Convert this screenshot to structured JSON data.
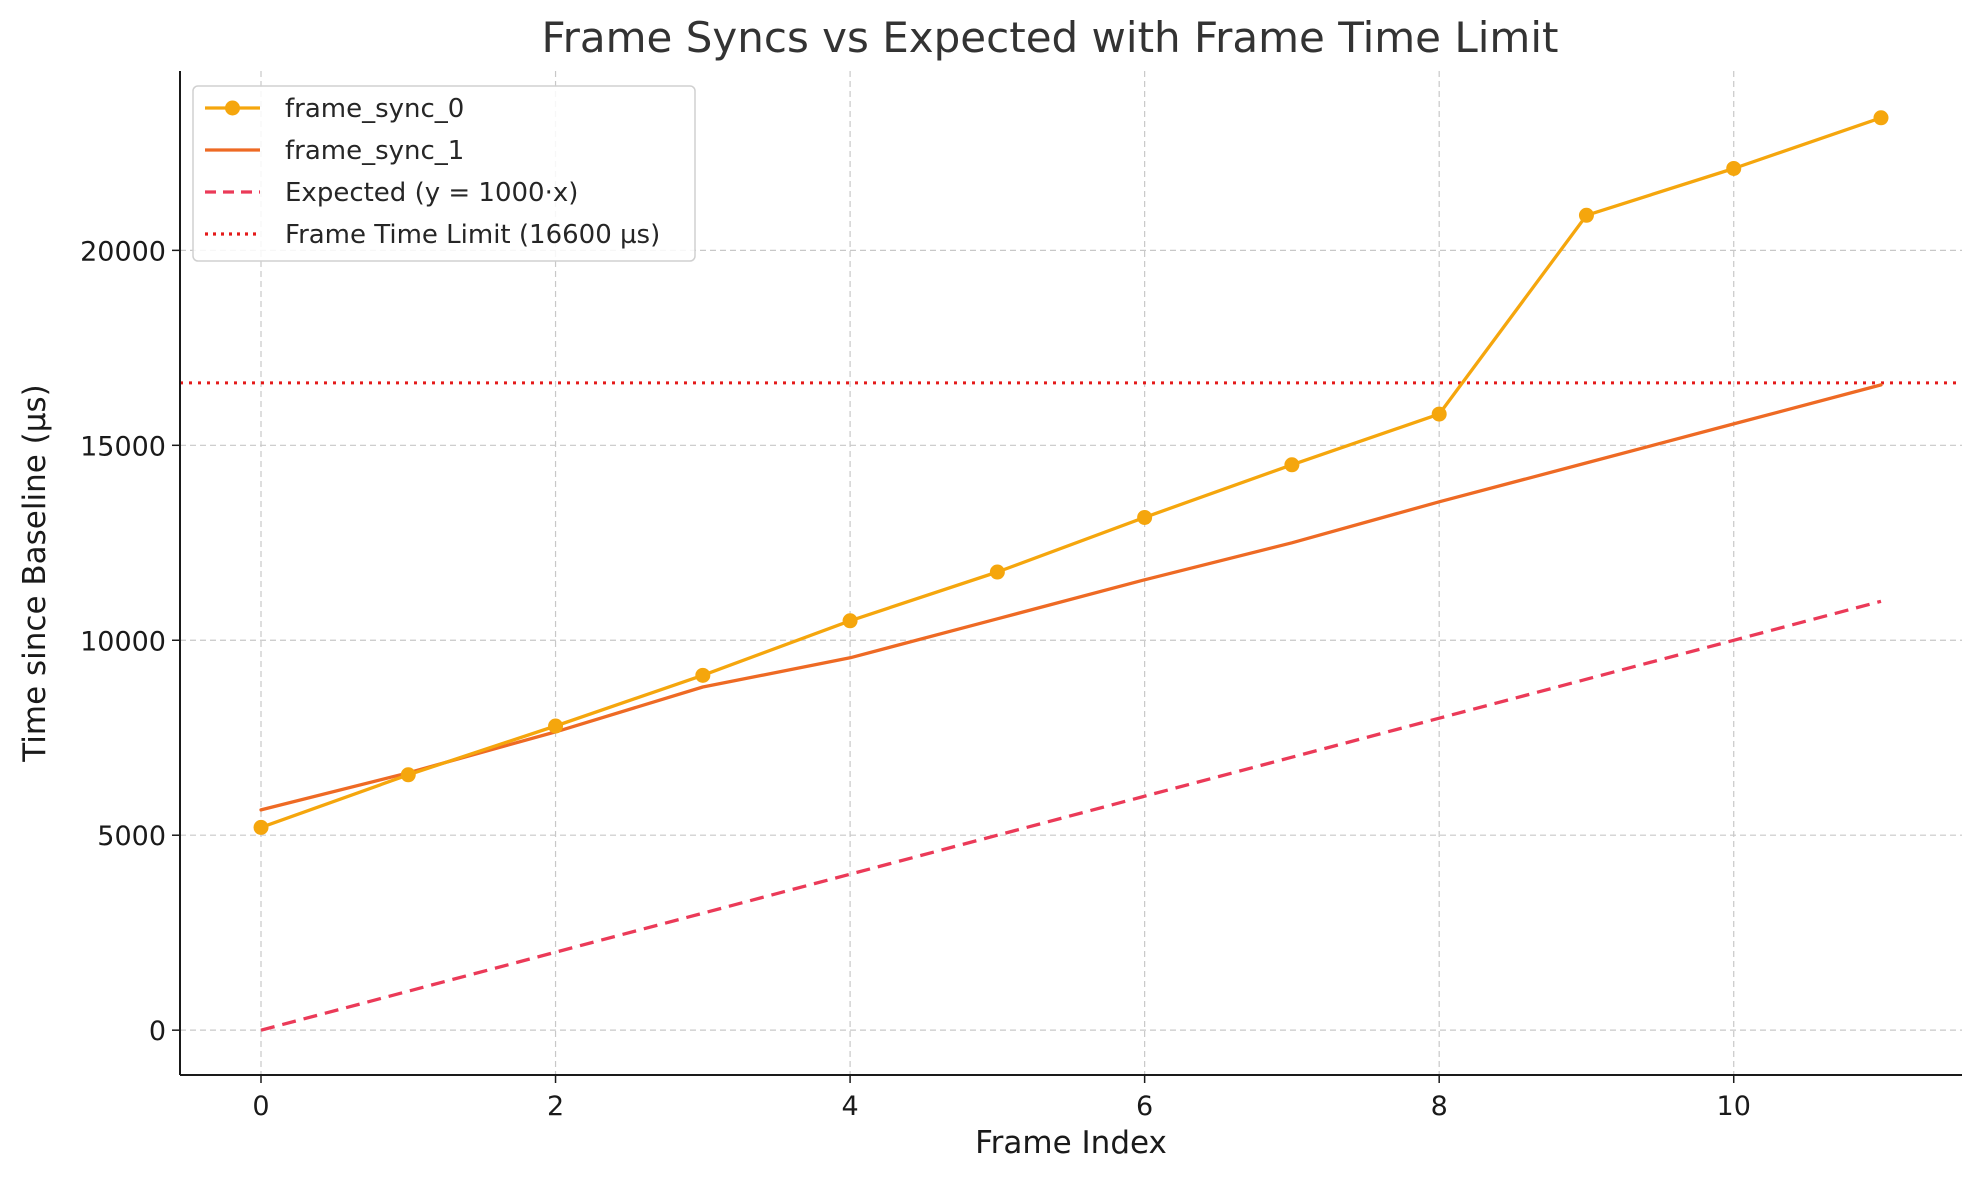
{
  "chart_data": {
    "type": "line",
    "title": "Frame Syncs vs Expected with Frame Time Limit",
    "xlabel": "Frame Index",
    "ylabel": "Time since Baseline (µs)",
    "xlim": [
      -0.55,
      11.55
    ],
    "ylim": [
      -1150,
      24600
    ],
    "xticks": [
      0,
      2,
      4,
      6,
      8,
      10
    ],
    "yticks": [
      0,
      5000,
      10000,
      15000,
      20000
    ],
    "grid": true,
    "legend_position": "top-left",
    "x": [
      0,
      1,
      2,
      3,
      4,
      5,
      6,
      7,
      8,
      9,
      10,
      11
    ],
    "series": [
      {
        "name": "frame_sync_0",
        "color": "#F5A60D",
        "style": "solid",
        "marker": "circle",
        "values": [
          5200,
          6550,
          7800,
          9100,
          10500,
          11750,
          13150,
          14500,
          15800,
          20900,
          22100,
          23400
        ]
      },
      {
        "name": "frame_sync_1",
        "color": "#EE6A24",
        "style": "solid",
        "marker": "none",
        "values": [
          5650,
          6600,
          7650,
          8800,
          9550,
          10550,
          11550,
          12500,
          13550,
          14550,
          15550,
          16550
        ]
      },
      {
        "name": "Expected (y = 1000·x)",
        "color": "#EB3A58",
        "style": "dashed",
        "marker": "none",
        "values": [
          0,
          1000,
          2000,
          3000,
          4000,
          5000,
          6000,
          7000,
          8000,
          9000,
          10000,
          11000
        ]
      }
    ],
    "hlines": [
      {
        "name": "Frame Time Limit (16600 µs)",
        "y": 16600,
        "color": "#E41A1A",
        "style": "dotted"
      }
    ]
  }
}
